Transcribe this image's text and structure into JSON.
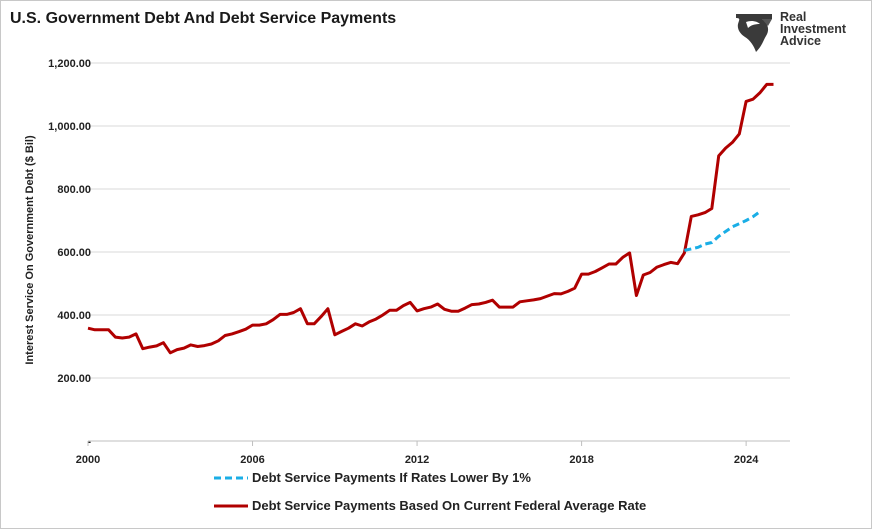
{
  "title": "U.S. Government Debt And Debt Service Payments",
  "logo": {
    "name": "real-investment-advice-logo",
    "lines": [
      "Real",
      "Investment",
      "Advice"
    ]
  },
  "colors": {
    "current_rate": "#b00000",
    "lower_rate": "#1aaee6",
    "grid": "#d9d9d9"
  },
  "chart_data": {
    "type": "line",
    "ylabel": "Interest Service On Government Debt ($ Bil)",
    "xlabel": "",
    "xlim": [
      2000,
      2025.6
    ],
    "ylim": [
      0,
      1200
    ],
    "x_ticks": [
      2000,
      2006,
      2012,
      2018,
      2024
    ],
    "x_tick_labels": [
      "2000",
      "2006",
      "2012",
      "2018",
      "2024"
    ],
    "y_ticks": [
      0,
      200,
      400,
      600,
      800,
      1000,
      1200
    ],
    "y_tick_labels": [
      "-",
      "200.00",
      "400.00",
      "600.00",
      "800.00",
      "1,000.00",
      "1,200.00"
    ],
    "grid": "horizontal",
    "legend_position": "bottom",
    "series": [
      {
        "name": "Debt Service Payments If Rates Lower By 1%",
        "style": "dashed",
        "color": "#1aaee6",
        "points": [
          [
            2021.75,
            605
          ],
          [
            2022.0,
            610
          ],
          [
            2022.25,
            615
          ],
          [
            2022.5,
            625
          ],
          [
            2022.75,
            630
          ],
          [
            2023.0,
            650
          ],
          [
            2023.25,
            665
          ],
          [
            2023.5,
            680
          ],
          [
            2023.75,
            690
          ],
          [
            2024.0,
            700
          ],
          [
            2024.25,
            712
          ],
          [
            2024.5,
            728
          ]
        ]
      },
      {
        "name": "Debt Service Payments Based On Current Federal Average Rate",
        "style": "solid",
        "color": "#b00000",
        "points": [
          [
            2000.0,
            358
          ],
          [
            2000.25,
            353
          ],
          [
            2000.5,
            353
          ],
          [
            2000.75,
            353
          ],
          [
            2001.0,
            330
          ],
          [
            2001.25,
            327
          ],
          [
            2001.5,
            330
          ],
          [
            2001.75,
            340
          ],
          [
            2002.0,
            293
          ],
          [
            2002.25,
            298
          ],
          [
            2002.5,
            302
          ],
          [
            2002.75,
            312
          ],
          [
            2003.0,
            280
          ],
          [
            2003.25,
            290
          ],
          [
            2003.5,
            295
          ],
          [
            2003.75,
            305
          ],
          [
            2004.0,
            300
          ],
          [
            2004.25,
            303
          ],
          [
            2004.5,
            308
          ],
          [
            2004.75,
            318
          ],
          [
            2005.0,
            335
          ],
          [
            2005.25,
            340
          ],
          [
            2005.5,
            347
          ],
          [
            2005.75,
            355
          ],
          [
            2006.0,
            368
          ],
          [
            2006.25,
            368
          ],
          [
            2006.5,
            372
          ],
          [
            2006.75,
            385
          ],
          [
            2007.0,
            402
          ],
          [
            2007.25,
            402
          ],
          [
            2007.5,
            408
          ],
          [
            2007.75,
            420
          ],
          [
            2008.0,
            372
          ],
          [
            2008.25,
            372
          ],
          [
            2008.5,
            395
          ],
          [
            2008.75,
            420
          ],
          [
            2009.0,
            337
          ],
          [
            2009.25,
            348
          ],
          [
            2009.5,
            358
          ],
          [
            2009.75,
            372
          ],
          [
            2010.0,
            365
          ],
          [
            2010.25,
            378
          ],
          [
            2010.5,
            387
          ],
          [
            2010.75,
            400
          ],
          [
            2011.0,
            415
          ],
          [
            2011.25,
            415
          ],
          [
            2011.5,
            430
          ],
          [
            2011.75,
            440
          ],
          [
            2012.0,
            413
          ],
          [
            2012.25,
            420
          ],
          [
            2012.5,
            425
          ],
          [
            2012.75,
            435
          ],
          [
            2013.0,
            418
          ],
          [
            2013.25,
            412
          ],
          [
            2013.5,
            412
          ],
          [
            2013.75,
            422
          ],
          [
            2014.0,
            433
          ],
          [
            2014.25,
            435
          ],
          [
            2014.5,
            440
          ],
          [
            2014.75,
            447
          ],
          [
            2015.0,
            425
          ],
          [
            2015.25,
            425
          ],
          [
            2015.5,
            425
          ],
          [
            2015.75,
            442
          ],
          [
            2016.0,
            445
          ],
          [
            2016.25,
            448
          ],
          [
            2016.5,
            452
          ],
          [
            2016.75,
            460
          ],
          [
            2017.0,
            468
          ],
          [
            2017.25,
            467
          ],
          [
            2017.5,
            475
          ],
          [
            2017.75,
            485
          ],
          [
            2018.0,
            530
          ],
          [
            2018.25,
            530
          ],
          [
            2018.5,
            538
          ],
          [
            2018.75,
            550
          ],
          [
            2019.0,
            562
          ],
          [
            2019.25,
            562
          ],
          [
            2019.5,
            583
          ],
          [
            2019.75,
            597
          ],
          [
            2020.0,
            462
          ],
          [
            2020.25,
            527
          ],
          [
            2020.5,
            535
          ],
          [
            2020.75,
            552
          ],
          [
            2021.0,
            560
          ],
          [
            2021.25,
            567
          ],
          [
            2021.5,
            563
          ],
          [
            2021.75,
            597
          ],
          [
            2022.0,
            713
          ],
          [
            2022.25,
            718
          ],
          [
            2022.5,
            725
          ],
          [
            2022.75,
            738
          ],
          [
            2023.0,
            905
          ],
          [
            2023.25,
            930
          ],
          [
            2023.5,
            948
          ],
          [
            2023.75,
            975
          ],
          [
            2024.0,
            1078
          ],
          [
            2024.25,
            1085
          ],
          [
            2024.5,
            1105
          ],
          [
            2024.75,
            1132
          ],
          [
            2025.0,
            1132
          ]
        ]
      }
    ]
  }
}
